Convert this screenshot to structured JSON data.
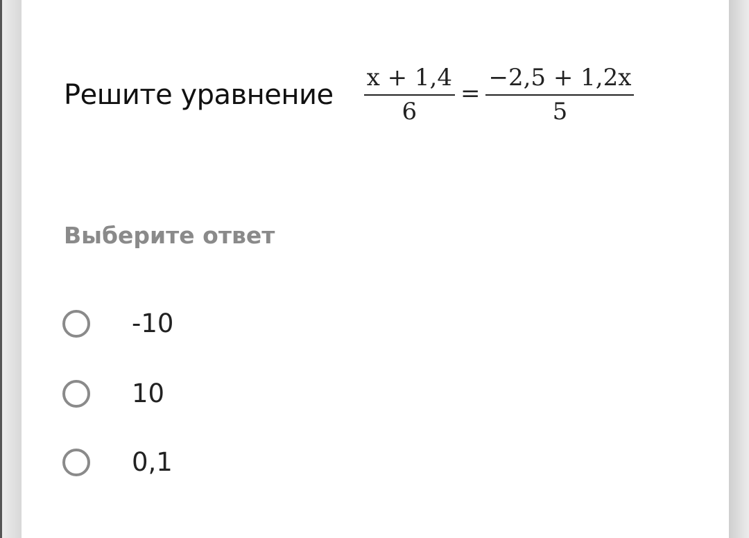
{
  "question": {
    "text": "Решите уравнение",
    "equation": {
      "left_numerator": "x + 1,4",
      "left_denominator": "6",
      "equals": "=",
      "right_numerator": "−2,5 + 1,2x",
      "right_denominator": "5"
    }
  },
  "prompt": "Выберите ответ",
  "options": [
    {
      "label": "-10",
      "selected": false
    },
    {
      "label": "10",
      "selected": false
    },
    {
      "label": "0,1",
      "selected": false
    }
  ]
}
